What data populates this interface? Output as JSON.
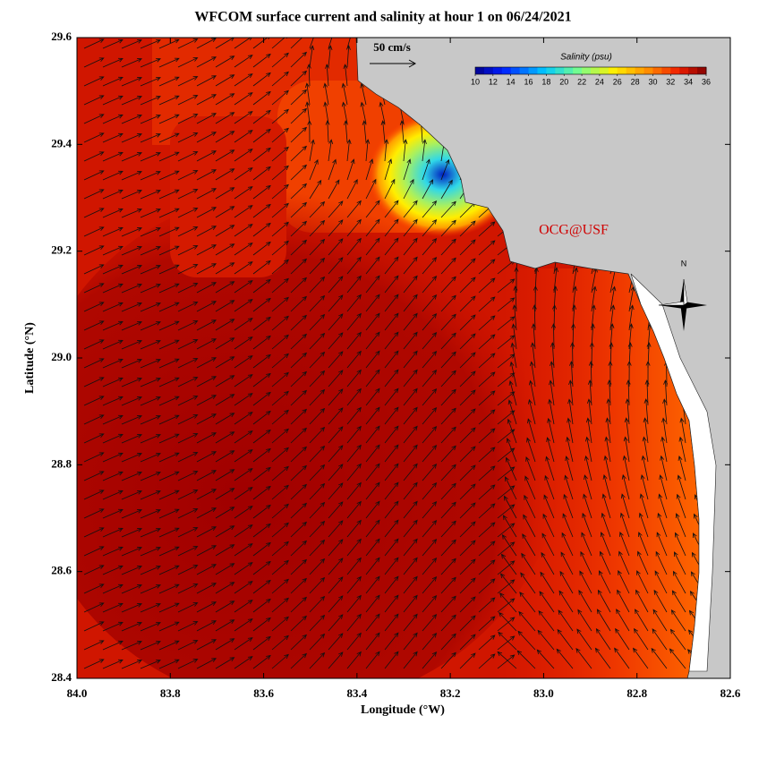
{
  "title": "WFCOM surface current and salinity at hour 1 on 06/24/2021",
  "x_axis": {
    "label": "Longitude (°W)",
    "lim": [
      84,
      82.6
    ],
    "ticks": [
      {
        "value": 84,
        "label": "84.0"
      },
      83.8,
      83.6,
      83.4,
      83.2,
      {
        "value": 83,
        "label": "83.0"
      },
      82.8,
      82.6
    ]
  },
  "y_axis": {
    "label": "Latitude (°N)",
    "lim": [
      28.4,
      29.6
    ],
    "ticks": [
      28.4,
      28.6,
      28.8,
      {
        "value": 29,
        "label": "29.0"
      },
      29.2,
      29.4,
      29.6
    ]
  },
  "colorbar": {
    "title": "Salinity (psu)",
    "lim": [
      10,
      36
    ],
    "ticks": [
      10,
      12,
      14,
      16,
      18,
      20,
      22,
      24,
      26,
      28,
      30,
      32,
      34,
      36
    ]
  },
  "scale_arrow": "50 cm/s",
  "watermark": "OCG@USF",
  "compass": "N"
}
